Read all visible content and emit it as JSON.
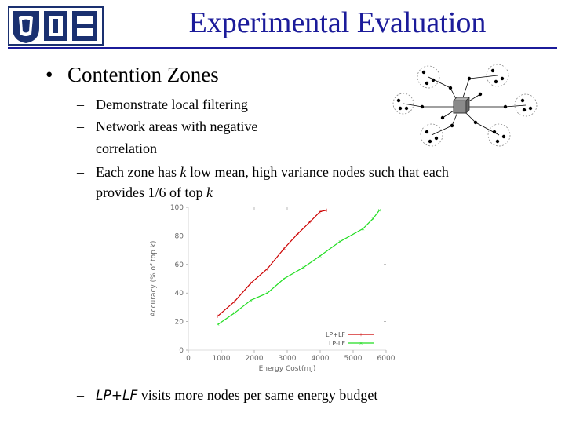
{
  "slide": {
    "title": "Experimental Evaluation",
    "bullet": "Contention Zones",
    "sub_items": [
      {
        "dash": "–",
        "text": "Demonstrate local filtering"
      },
      {
        "dash": "–",
        "text": "Network areas with negative"
      },
      {
        "dash": "",
        "text": "correlation"
      },
      {
        "dash": "–",
        "text_parts": [
          "Each zone has ",
          "k",
          " low mean, high variance nodes such that each"
        ]
      },
      {
        "dash": "",
        "text_parts": [
          "provides 1/6 of top ",
          "k"
        ]
      }
    ],
    "footer_item": {
      "dash": "–",
      "text_parts": [
        "LP+LF",
        " visits more nodes per same energy budget"
      ]
    },
    "colors": {
      "title": "#1b1b9a",
      "logo": "#1a3070",
      "series1": "#cc0000",
      "series2": "#22dd22"
    }
  },
  "chart_data": {
    "type": "line",
    "xlabel": "Energy Cost(mJ)",
    "ylabel": "Accuracy (% of top k)",
    "xlim": [
      0,
      6000
    ],
    "ylim": [
      0,
      100
    ],
    "x_ticks": [
      "0",
      "1000",
      "2000",
      "3000",
      "4000",
      "5000",
      "6000"
    ],
    "y_ticks": [
      "0",
      "20",
      "40",
      "60",
      "80",
      "100"
    ],
    "legend": "inside bottom-right",
    "series": [
      {
        "name": "LP+LF",
        "color": "#cc0000",
        "points": [
          [
            900,
            24
          ],
          [
            1400,
            34
          ],
          [
            1900,
            47
          ],
          [
            2400,
            57
          ],
          [
            2900,
            71
          ],
          [
            3300,
            81
          ],
          [
            3700,
            90
          ],
          [
            4000,
            97
          ],
          [
            4200,
            98
          ]
        ]
      },
      {
        "name": "LP-LF",
        "color": "#22dd22",
        "points": [
          [
            900,
            18
          ],
          [
            1400,
            26
          ],
          [
            1900,
            35
          ],
          [
            2400,
            40
          ],
          [
            2900,
            50
          ],
          [
            3500,
            58
          ],
          [
            4000,
            66
          ],
          [
            4600,
            76
          ],
          [
            5300,
            85
          ],
          [
            5600,
            92
          ],
          [
            5800,
            98
          ]
        ]
      }
    ]
  }
}
